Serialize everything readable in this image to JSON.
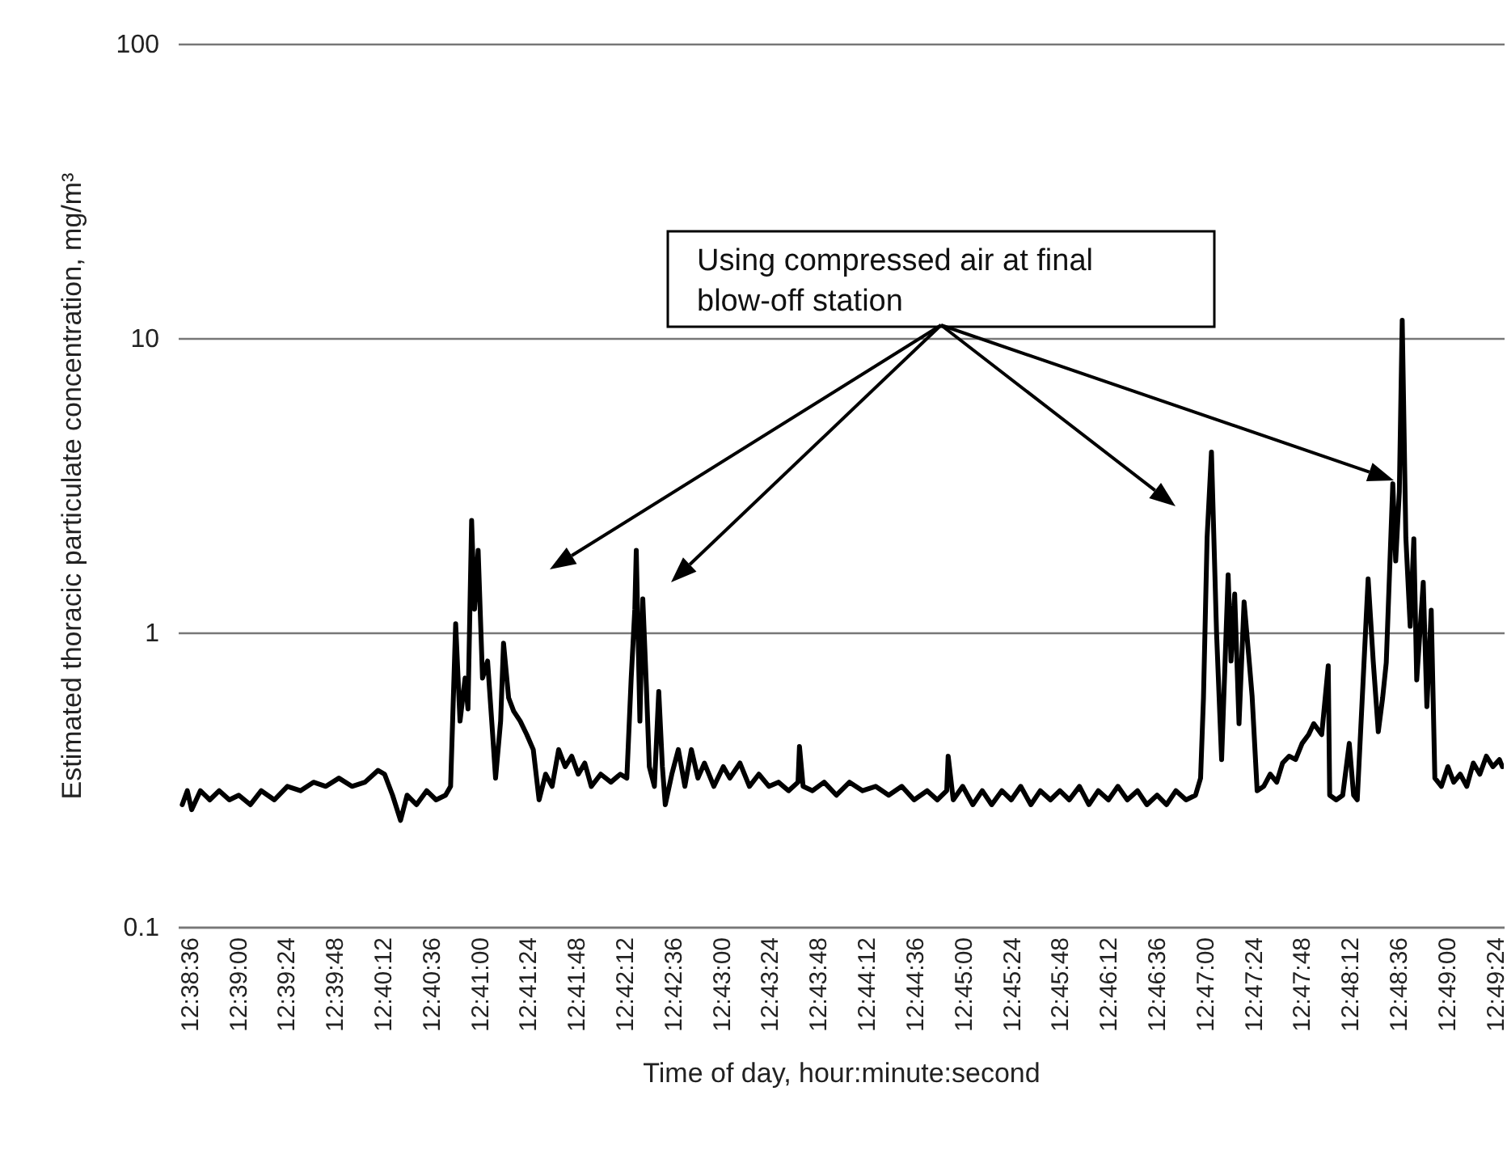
{
  "chart_data": {
    "type": "line",
    "xlabel": "Time of day, hour:minute:second",
    "ylabel": "Estimated thoracic particulate concentration, mg/m³",
    "annotations": [
      "Using compressed air at final blow-off station"
    ],
    "log": "y",
    "grid": "y",
    "marker": "none",
    "line_style": "solid",
    "xlim": [
      12.6418,
      12.8246
    ],
    "ylim": [
      0.1,
      100
    ],
    "yticks": [
      0.1,
      1,
      10,
      100
    ],
    "xticks": [
      {
        "value": 12.64333,
        "label": "12:38:36"
      },
      {
        "value": 12.65,
        "label": "12:39:00"
      },
      {
        "value": 12.65667,
        "label": "12:39:24"
      },
      {
        "value": 12.66333,
        "label": "12:39:48"
      },
      {
        "value": 12.67,
        "label": "12:40:12"
      },
      {
        "value": 12.67667,
        "label": "12:40:36"
      },
      {
        "value": 12.68333,
        "label": "12:41:00"
      },
      {
        "value": 12.69,
        "label": "12:41:24"
      },
      {
        "value": 12.69667,
        "label": "12:41:48"
      },
      {
        "value": 12.70333,
        "label": "12:42:12"
      },
      {
        "value": 12.71,
        "label": "12:42:36"
      },
      {
        "value": 12.71667,
        "label": "12:43:00"
      },
      {
        "value": 12.72333,
        "label": "12:43:24"
      },
      {
        "value": 12.73,
        "label": "12:43:48"
      },
      {
        "value": 12.73667,
        "label": "12:44:12"
      },
      {
        "value": 12.74333,
        "label": "12:44:36"
      },
      {
        "value": 12.75,
        "label": "12:45:00"
      },
      {
        "value": 12.75667,
        "label": "12:45:24"
      },
      {
        "value": 12.76333,
        "label": "12:45:48"
      },
      {
        "value": 12.77,
        "label": "12:46:12"
      },
      {
        "value": 12.77667,
        "label": "12:46:36"
      },
      {
        "value": 12.78333,
        "label": "12:47:00"
      },
      {
        "value": 12.79,
        "label": "12:47:24"
      },
      {
        "value": 12.79667,
        "label": "12:47:48"
      },
      {
        "value": 12.80333,
        "label": "12:48:12"
      },
      {
        "value": 12.81,
        "label": "12:48:36"
      },
      {
        "value": 12.81667,
        "label": "12:49:00"
      },
      {
        "value": 12.82333,
        "label": "12:49:24"
      }
    ],
    "series": [
      {
        "color": "#000000",
        "x": [
          12.6424,
          12.6431,
          12.6437,
          12.6449,
          12.6462,
          12.6475,
          12.6489,
          12.6502,
          12.6518,
          12.6533,
          12.6551,
          12.6569,
          12.6587,
          12.6605,
          12.6622,
          12.664,
          12.6658,
          12.6676,
          12.6694,
          12.6703,
          12.6714,
          12.6725,
          12.6734,
          12.6747,
          12.6761,
          12.6774,
          12.6787,
          12.6794,
          12.6801,
          12.6807,
          12.6814,
          12.6818,
          12.6823,
          12.6827,
          12.6832,
          12.6838,
          12.6845,
          12.6852,
          12.6856,
          12.6863,
          12.6867,
          12.6874,
          12.6881,
          12.689,
          12.6899,
          12.6908,
          12.6916,
          12.6925,
          12.6934,
          12.6943,
          12.6952,
          12.6961,
          12.697,
          12.6979,
          12.6988,
          12.7001,
          12.7015,
          12.7028,
          12.7037,
          12.7043,
          12.7048,
          12.705,
          12.7055,
          12.7059,
          12.7064,
          12.7068,
          12.7075,
          12.7081,
          12.7086,
          12.709,
          12.7099,
          12.7108,
          12.7117,
          12.7126,
          12.7135,
          12.7144,
          12.7157,
          12.717,
          12.7179,
          12.7193,
          12.7206,
          12.7219,
          12.7233,
          12.7246,
          12.726,
          12.7273,
          12.7275,
          12.728,
          12.7293,
          12.7309,
          12.7326,
          12.7344,
          12.7362,
          12.738,
          12.7398,
          12.7416,
          12.7433,
          12.7451,
          12.7465,
          12.7478,
          12.748,
          12.7487,
          12.75,
          12.7514,
          12.7527,
          12.754,
          12.7554,
          12.7567,
          12.758,
          12.7594,
          12.7607,
          12.7621,
          12.7634,
          12.7647,
          12.7661,
          12.7674,
          12.7687,
          12.7701,
          12.7714,
          12.7727,
          12.7741,
          12.7754,
          12.7768,
          12.7781,
          12.7794,
          12.7808,
          12.7821,
          12.7828,
          12.7832,
          12.7837,
          12.7843,
          12.785,
          12.7857,
          12.7866,
          12.787,
          12.7875,
          12.7881,
          12.7888,
          12.7895,
          12.7899,
          12.7906,
          12.7915,
          12.7924,
          12.7933,
          12.7941,
          12.795,
          12.7959,
          12.7968,
          12.7977,
          12.7984,
          12.7995,
          12.8004,
          12.8006,
          12.8015,
          12.8024,
          12.8033,
          12.8039,
          12.8044,
          12.8059,
          12.8066,
          12.8073,
          12.8079,
          12.8084,
          12.8093,
          12.8097,
          12.8102,
          12.8106,
          12.8111,
          12.8117,
          12.8122,
          12.8126,
          12.8135,
          12.814,
          12.8146,
          12.8151,
          12.816,
          12.8169,
          12.8177,
          12.8186,
          12.8195,
          12.8204,
          12.8213,
          12.8222,
          12.8231,
          12.824,
          12.8244
        ],
        "values": [
          0.26,
          0.29,
          0.25,
          0.29,
          0.27,
          0.29,
          0.27,
          0.28,
          0.26,
          0.29,
          0.27,
          0.3,
          0.29,
          0.31,
          0.3,
          0.32,
          0.3,
          0.31,
          0.34,
          0.33,
          0.28,
          0.23,
          0.28,
          0.26,
          0.29,
          0.27,
          0.28,
          0.3,
          1.07,
          0.5,
          0.7,
          0.55,
          2.4,
          1.2,
          1.9,
          0.7,
          0.8,
          0.45,
          0.32,
          0.5,
          0.92,
          0.6,
          0.54,
          0.5,
          0.45,
          0.4,
          0.27,
          0.33,
          0.3,
          0.4,
          0.35,
          0.38,
          0.33,
          0.36,
          0.3,
          0.33,
          0.31,
          0.33,
          0.32,
          0.7,
          1.2,
          1.9,
          0.5,
          1.3,
          0.65,
          0.35,
          0.3,
          0.63,
          0.35,
          0.26,
          0.33,
          0.4,
          0.3,
          0.4,
          0.32,
          0.36,
          0.3,
          0.35,
          0.32,
          0.36,
          0.3,
          0.33,
          0.3,
          0.31,
          0.29,
          0.31,
          0.41,
          0.3,
          0.29,
          0.31,
          0.28,
          0.31,
          0.29,
          0.3,
          0.28,
          0.3,
          0.27,
          0.29,
          0.27,
          0.29,
          0.38,
          0.27,
          0.3,
          0.26,
          0.29,
          0.26,
          0.29,
          0.27,
          0.3,
          0.26,
          0.29,
          0.27,
          0.29,
          0.27,
          0.3,
          0.26,
          0.29,
          0.27,
          0.3,
          0.27,
          0.29,
          0.26,
          0.28,
          0.26,
          0.29,
          0.27,
          0.28,
          0.32,
          0.6,
          2.1,
          4.1,
          1.0,
          0.37,
          1.57,
          0.8,
          1.35,
          0.49,
          1.27,
          0.8,
          0.61,
          0.29,
          0.3,
          0.33,
          0.31,
          0.36,
          0.38,
          0.37,
          0.42,
          0.45,
          0.49,
          0.45,
          0.77,
          0.28,
          0.27,
          0.28,
          0.42,
          0.28,
          0.27,
          1.52,
          0.8,
          0.46,
          0.6,
          0.79,
          3.2,
          1.75,
          3.0,
          11.5,
          2.1,
          1.05,
          2.08,
          0.69,
          1.48,
          0.56,
          1.19,
          0.32,
          0.3,
          0.35,
          0.31,
          0.33,
          0.3,
          0.36,
          0.33,
          0.38,
          0.35,
          0.37,
          0.35
        ]
      }
    ]
  }
}
